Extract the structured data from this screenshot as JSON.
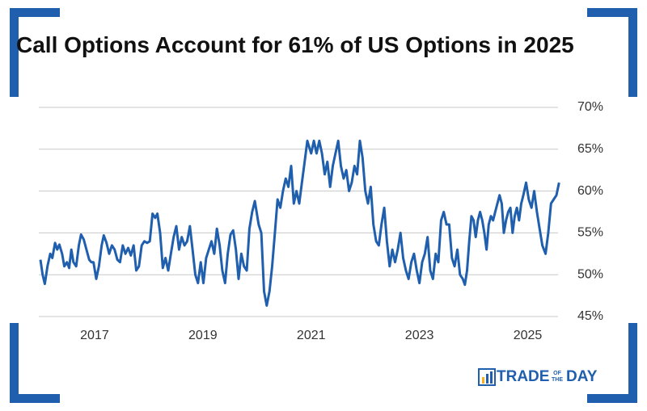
{
  "chart_data": {
    "type": "line",
    "title": "Call Options Account for 61% of US Options in 2025",
    "color": "#1f5fae",
    "grid": true,
    "xlim": [
      2015.97,
      2025.62
    ],
    "xticks": [
      2017,
      2019,
      2021,
      2023,
      2025
    ],
    "ylim": [
      45,
      70
    ],
    "yticks": [
      {
        "value": 45,
        "label": "45%"
      },
      {
        "value": 50,
        "label": "50%"
      },
      {
        "value": 55,
        "label": "55%"
      },
      {
        "value": 60,
        "label": "60%"
      },
      {
        "value": 65,
        "label": "65%"
      },
      {
        "value": 70,
        "label": "70%"
      }
    ],
    "x": [
      2016.0,
      2016.04,
      2016.08,
      2016.13,
      2016.18,
      2016.22,
      2016.27,
      2016.31,
      2016.35,
      2016.4,
      2016.44,
      2016.49,
      2016.53,
      2016.57,
      2016.61,
      2016.66,
      2016.71,
      2016.75,
      2016.8,
      2016.85,
      2016.9,
      2016.94,
      2016.98,
      2017.03,
      2017.08,
      2017.13,
      2017.17,
      2017.22,
      2017.27,
      2017.32,
      2017.37,
      2017.42,
      2017.47,
      2017.52,
      2017.57,
      2017.62,
      2017.67,
      2017.72,
      2017.77,
      2017.82,
      2017.87,
      2017.92,
      2017.97,
      2018.02,
      2018.07,
      2018.12,
      2018.16,
      2018.21,
      2018.26,
      2018.31,
      2018.36,
      2018.41,
      2018.46,
      2018.51,
      2018.56,
      2018.61,
      2018.66,
      2018.71,
      2018.76,
      2018.81,
      2018.86,
      2018.91,
      2018.96,
      2019.01,
      2019.06,
      2019.11,
      2019.16,
      2019.21,
      2019.26,
      2019.31,
      2019.36,
      2019.41,
      2019.46,
      2019.51,
      2019.56,
      2019.61,
      2019.66,
      2019.71,
      2019.76,
      2019.81,
      2019.86,
      2019.91,
      2019.96,
      2020.03,
      2020.08,
      2020.13,
      2020.18,
      2020.23,
      2020.28,
      2020.33,
      2020.38,
      2020.43,
      2020.48,
      2020.53,
      2020.58,
      2020.63,
      2020.68,
      2020.73,
      2020.78,
      2020.83,
      2020.88,
      2020.93,
      2021.0,
      2021.05,
      2021.1,
      2021.15,
      2021.2,
      2021.25,
      2021.3,
      2021.35,
      2021.4,
      2021.45,
      2021.5,
      2021.55,
      2021.6,
      2021.65,
      2021.7,
      2021.75,
      2021.8,
      2021.85,
      2021.9,
      2021.95,
      2022.0,
      2022.05,
      2022.1,
      2022.15,
      2022.2,
      2022.25,
      2022.3,
      2022.35,
      2022.4,
      2022.45,
      2022.5,
      2022.55,
      2022.6,
      2022.65,
      2022.7,
      2022.75,
      2022.8,
      2022.85,
      2022.9,
      2022.95,
      2023.0,
      2023.05,
      2023.1,
      2023.15,
      2023.2,
      2023.25,
      2023.3,
      2023.35,
      2023.4,
      2023.45,
      2023.5,
      2023.55,
      2023.6,
      2023.65,
      2023.7,
      2023.75,
      2023.8,
      2023.84,
      2023.88,
      2023.92,
      2023.96,
      2024.0,
      2024.04,
      2024.08,
      2024.12,
      2024.16,
      2024.2,
      2024.24,
      2024.28,
      2024.32,
      2024.36,
      2024.4,
      2024.44,
      2024.48,
      2024.52,
      2024.56,
      2024.6,
      2024.64,
      2024.68,
      2024.72,
      2024.76,
      2024.8,
      2024.84,
      2024.88,
      2024.92,
      2024.97,
      2025.02,
      2025.07,
      2025.12,
      2025.17,
      2025.22,
      2025.27,
      2025.33,
      2025.38,
      2025.43,
      2025.48,
      2025.53,
      2025.58
    ],
    "values": [
      51.8,
      50,
      48.9,
      51,
      52.5,
      52,
      53.8,
      53,
      53.6,
      52.5,
      51,
      51.5,
      50.8,
      53,
      51.5,
      51,
      53.5,
      54.8,
      54.2,
      53,
      51.8,
      51.5,
      51.5,
      49.5,
      51,
      53.5,
      54.7,
      53.8,
      52.5,
      53.5,
      53,
      51.8,
      51.5,
      53.5,
      52.5,
      53.2,
      52.3,
      53.5,
      50.5,
      51,
      53.5,
      54,
      53.8,
      54,
      57.3,
      56.8,
      57.3,
      55,
      50.8,
      52,
      50.5,
      52.5,
      54.5,
      55.8,
      53,
      54.5,
      53.5,
      54,
      55.8,
      53,
      50,
      49,
      51.5,
      49,
      52,
      53,
      54,
      52.5,
      55.5,
      53.5,
      50.5,
      49,
      52.5,
      54.8,
      55.3,
      53,
      49.5,
      52.5,
      51,
      50.5,
      55.5,
      57.5,
      58.8,
      56,
      55,
      48,
      46.3,
      48,
      51,
      55,
      59,
      58,
      60,
      61.5,
      60.5,
      63,
      58.5,
      60,
      58.5,
      61,
      63.5,
      66,
      64.5,
      66,
      64.5,
      66,
      64.5,
      62,
      63.5,
      60.5,
      63,
      64.5,
      66,
      63,
      61.5,
      62.5,
      60,
      61,
      63,
      62,
      66,
      64,
      60,
      58.5,
      60.5,
      56,
      54,
      53.5,
      56,
      58,
      54,
      51,
      53,
      51.5,
      53,
      55,
      52,
      50.5,
      49.5,
      51.5,
      52.5,
      50.5,
      49,
      51.5,
      52.5,
      54.5,
      50.5,
      49.5,
      52.5,
      51.5,
      56.5,
      57.5,
      56,
      56,
      52,
      51,
      53,
      50,
      49.5,
      48.8,
      50.5,
      54,
      57,
      56.5,
      54.5,
      56.5,
      57.5,
      56.5,
      55,
      53,
      56,
      57,
      56.5,
      57.5,
      58.5,
      59.5,
      58.5,
      55,
      56.5,
      57.5,
      58,
      55,
      57,
      58,
      56.5,
      58.5,
      59.5,
      61,
      59,
      58,
      60,
      57.5,
      55.5,
      53.5,
      52.5,
      55,
      58.5,
      59,
      59.5,
      61
    ]
  },
  "logo": [
    "TRADE",
    "OF",
    "THE",
    "DAY"
  ]
}
